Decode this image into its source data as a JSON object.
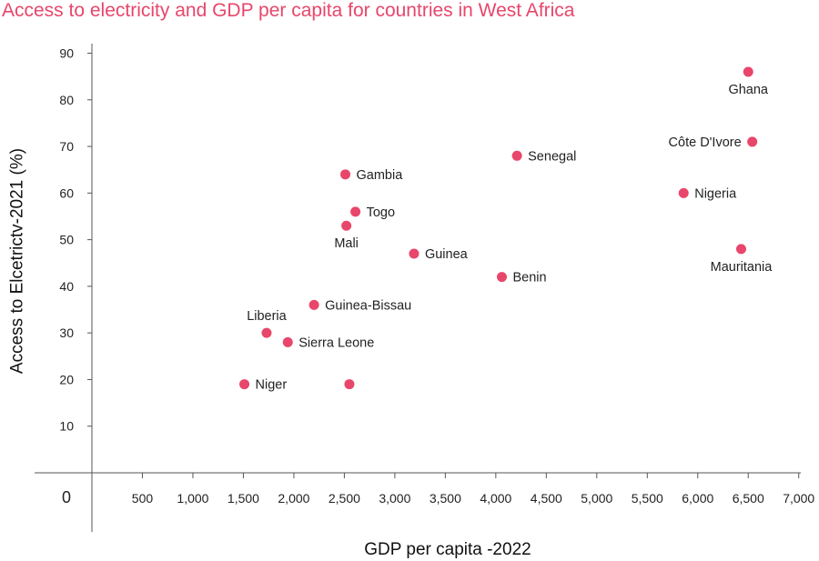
{
  "chart_data": {
    "type": "scatter",
    "title": "Access to electricity and GDP per capita for countries in West Africa",
    "xlabel": "GDP per capita -2022",
    "ylabel": "Access to Elcetrictv-2021 (%)",
    "xlim": [
      0,
      7000
    ],
    "ylim": [
      0,
      90
    ],
    "x_ticks": [
      500,
      1000,
      1500,
      2000,
      2500,
      3000,
      3500,
      4000,
      4500,
      5000,
      5500,
      6000,
      6500,
      7000
    ],
    "x_tick_labels": [
      "500",
      "1,000",
      "1,500",
      "2,000",
      "2,500",
      "3,000",
      "3,500",
      "4,000",
      "4,500",
      "5,000",
      "5,500",
      "6,000",
      "6,500",
      "7,000"
    ],
    "y_ticks": [
      10,
      20,
      30,
      40,
      50,
      60,
      70,
      80,
      90
    ],
    "y_tick_labels": [
      "10",
      "20",
      "30",
      "40",
      "50",
      "60",
      "70",
      "80",
      "90"
    ],
    "origin_label": "0",
    "grid": false,
    "marker_color": "#e8466a",
    "title_color": "#e8466a",
    "points": [
      {
        "label": "Ghana",
        "x": 6500,
        "y": 86,
        "label_pos": "below"
      },
      {
        "label": "Côte D'Ivore",
        "x": 6540,
        "y": 71,
        "label_pos": "left"
      },
      {
        "label": "Nigeria",
        "x": 5860,
        "y": 60,
        "label_pos": "right"
      },
      {
        "label": "Mauritania",
        "x": 6430,
        "y": 48,
        "label_pos": "below"
      },
      {
        "label": "Senegal",
        "x": 4210,
        "y": 68,
        "label_pos": "right"
      },
      {
        "label": "Benin",
        "x": 4060,
        "y": 42,
        "label_pos": "right"
      },
      {
        "label": "Guinea",
        "x": 3190,
        "y": 47,
        "label_pos": "right"
      },
      {
        "label": "Gambia",
        "x": 2510,
        "y": 64,
        "label_pos": "right"
      },
      {
        "label": "Togo",
        "x": 2610,
        "y": 56,
        "label_pos": "right"
      },
      {
        "label": "Mali",
        "x": 2520,
        "y": 53,
        "label_pos": "below"
      },
      {
        "label": "Guinea-Bissau",
        "x": 2200,
        "y": 36,
        "label_pos": "right"
      },
      {
        "label": "Liberia",
        "x": 1730,
        "y": 30,
        "label_pos": "above"
      },
      {
        "label": "Sierra Leone",
        "x": 1940,
        "y": 28,
        "label_pos": "right"
      },
      {
        "label": "Niger",
        "x": 1510,
        "y": 19,
        "label_pos": "right"
      },
      {
        "label": "",
        "x": 2550,
        "y": 19,
        "label_pos": "none"
      }
    ]
  }
}
